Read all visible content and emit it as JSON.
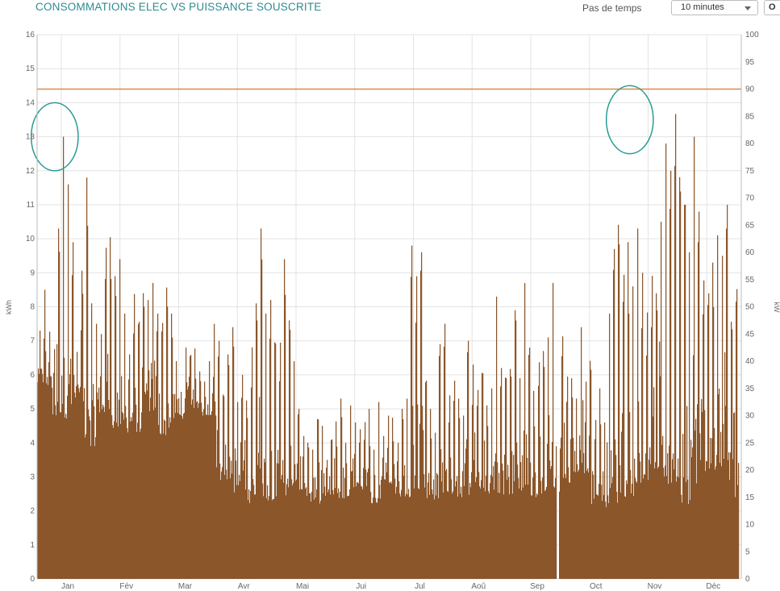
{
  "header": {
    "title": "CONSOMMATIONS ELEC VS PUISSANCE SOUSCRITE",
    "step_label": "Pas de temps",
    "step_value": "10 minutes",
    "extra_button": "O"
  },
  "colors": {
    "bars": "#8a562a",
    "threshold": "#d9894a",
    "annotation": "#2a9c94",
    "grid": "#e3e3e3",
    "title": "#2e8b8f"
  },
  "chart_data": {
    "type": "area",
    "title": "CONSOMMATIONS ELEC VS PUISSANCE SOUSCRITE",
    "ylabel": "kWh",
    "y2label": "kW",
    "ylim": [
      0,
      16
    ],
    "y2lim": [
      0,
      100
    ],
    "y_ticks": [
      0,
      1,
      2,
      3,
      4,
      5,
      6,
      7,
      8,
      9,
      10,
      11,
      12,
      13,
      14,
      15,
      16
    ],
    "y2_ticks": [
      0,
      5,
      10,
      15,
      20,
      25,
      30,
      35,
      40,
      45,
      50,
      55,
      60,
      65,
      70,
      75,
      80,
      85,
      90,
      95,
      100
    ],
    "x_ticks": [
      "Jan",
      "Fév",
      "Mar",
      "Avr",
      "Mai",
      "Jui",
      "Jul",
      "Aoû",
      "Sep",
      "Oct",
      "Nov",
      "Déc"
    ],
    "grid": true,
    "series": [
      {
        "type": "bar",
        "axis": "left",
        "x_start_month": 0.0,
        "x_end_month": 11.95,
        "peak_values": [
          7.3,
          8.5,
          7.4,
          6.8,
          10.3,
          13.0,
          11.6,
          9.9,
          7.3,
          10.2,
          11.8,
          8.1,
          7.5,
          7.2,
          9.8,
          10.3,
          8.9,
          9.4,
          7.8,
          6.6,
          8.5,
          7.6,
          8.4,
          8.2,
          8.7,
          7.8,
          8.5,
          9.0,
          7.8,
          6.4,
          5.5,
          6.8,
          7.1,
          7.3,
          6.1,
          5.8,
          6.4,
          7.5,
          7.9,
          6.8,
          6.6,
          7.4,
          5.2,
          6.0,
          5.6,
          7.2,
          8.1,
          10.3,
          7.8,
          8.2,
          8.1,
          7.3,
          9.4,
          7.6,
          6.4,
          5.0,
          4.2,
          4.6,
          3.8,
          4.7,
          4.5,
          3.5,
          4.1,
          4.9,
          5.3,
          4.0,
          5.1,
          4.6,
          4.4,
          4.7,
          5.0,
          3.8,
          5.2,
          4.2,
          4.8,
          5.1,
          4.4,
          5.0,
          5.3,
          9.8,
          8.9,
          11.0,
          6.6,
          5.0,
          4.3,
          6.9,
          7.5,
          5.7,
          6.5,
          5.3,
          4.8,
          7.0,
          6.3,
          5.6,
          6.1,
          5.1,
          5.6,
          8.3,
          6.2,
          6.6,
          7.2,
          7.9,
          5.9,
          8.7,
          6.8,
          5.7,
          7.0,
          6.7,
          7.1,
          8.7,
          6.5,
          8.2,
          6.0,
          5.9,
          5.3,
          7.4,
          5.8,
          6.7,
          5.2,
          5.6,
          4.6,
          7.8,
          9.7,
          10.6,
          9.4,
          9.9,
          8.6,
          10.3,
          9.0,
          8.1,
          9.4,
          8.4,
          10.5,
          12.8,
          12.0,
          13.7,
          12.1,
          11.0,
          9.6,
          13.0,
          10.8,
          9.2,
          8.9,
          9.3,
          10.1,
          9.5,
          11.0,
          8.7,
          10.4
        ],
        "trough_values": [
          5.6,
          4.7,
          5.1,
          3.9,
          4.8,
          4.4,
          4.3,
          4.9,
          4.2,
          4.7,
          5.0,
          4.8,
          2.9,
          2.5,
          2.2,
          2.3,
          2.4,
          2.6,
          2.2,
          2.4,
          2.3,
          2.6,
          2.2,
          2.8,
          2.4,
          2.6,
          2.3,
          2.5,
          2.4,
          2.6,
          2.5,
          2.3,
          2.6,
          2.4,
          2.5,
          2.7,
          3.1,
          2.2,
          2.1,
          2.4,
          2.8,
          3.0,
          2.6,
          2.2,
          2.8,
          3.2,
          2.4
        ],
        "gap_month": 9.0
      },
      {
        "type": "line",
        "axis": "right",
        "name": "Puissance souscrite",
        "value": 90
      }
    ],
    "annotations": [
      {
        "type": "ellipse",
        "cx_month": 0.3,
        "cy_value": 13.0,
        "rx_months": 0.5,
        "ry_value": 1.0
      },
      {
        "type": "ellipse",
        "cx_month": 10.1,
        "cy_value": 13.5,
        "rx_months": 0.5,
        "ry_value": 1.0
      }
    ]
  }
}
